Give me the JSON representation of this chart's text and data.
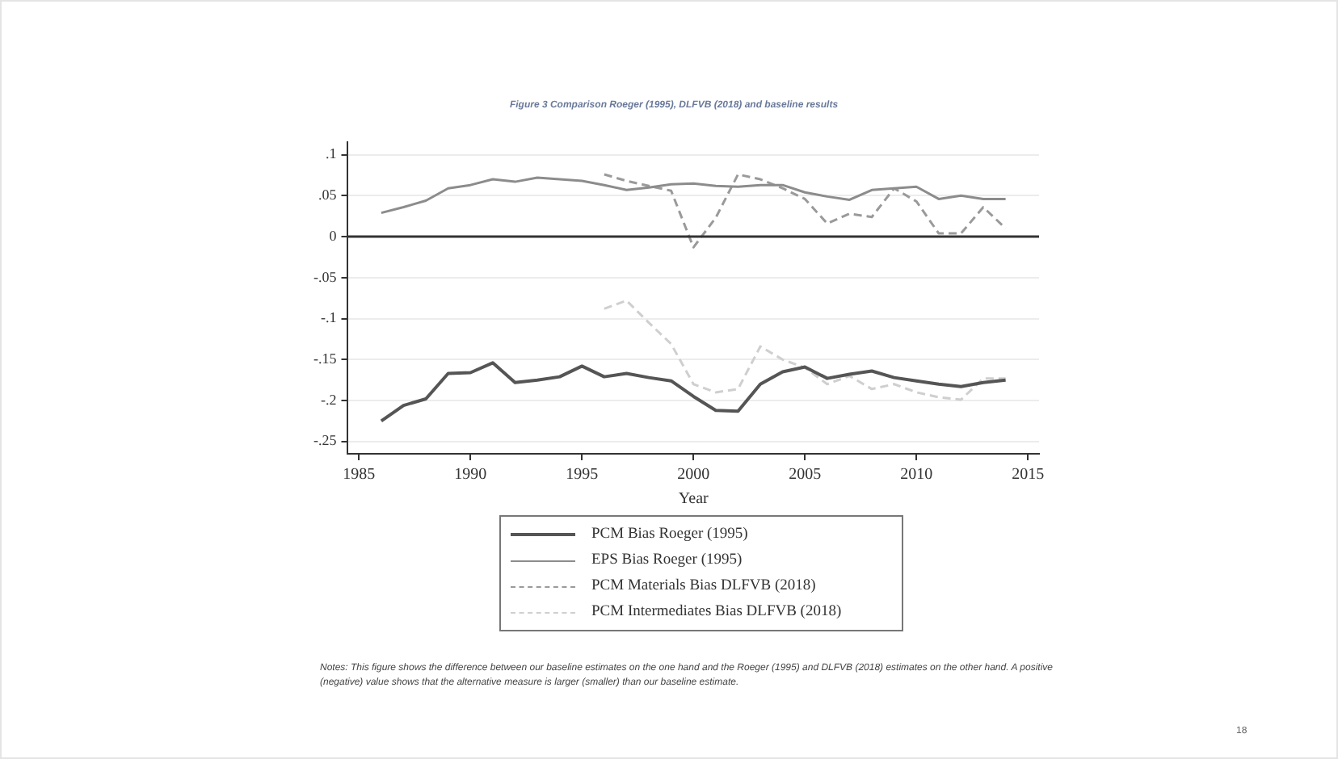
{
  "chart_data": {
    "type": "line",
    "title": "Figure 3 Comparison Roeger (1995), DLFVB (2018) and baseline results",
    "xlabel": "Year",
    "x": [
      1986,
      1987,
      1988,
      1989,
      1990,
      1991,
      1992,
      1993,
      1994,
      1995,
      1996,
      1997,
      1998,
      1999,
      2000,
      2001,
      2002,
      2003,
      2004,
      2005,
      2006,
      2007,
      2008,
      2009,
      2010,
      2011,
      2012,
      2013,
      2014
    ],
    "series": [
      {
        "name": "PCM Bias Roeger (1995)",
        "color": "#555555",
        "line_style": "solid",
        "values": [
          -0.225,
          -0.206,
          -0.198,
          -0.167,
          -0.166,
          -0.154,
          -0.178,
          -0.175,
          -0.171,
          -0.158,
          -0.171,
          -0.167,
          -0.172,
          -0.176,
          -0.195,
          -0.212,
          -0.213,
          -0.18,
          -0.165,
          -0.159,
          -0.173,
          -0.168,
          -0.164,
          -0.172,
          -0.176,
          -0.18,
          -0.183,
          -0.178,
          -0.175
        ]
      },
      {
        "name": "EPS Bias Roeger (1995)",
        "color": "#8c8c8c",
        "line_style": "solid",
        "values": [
          0.029,
          0.036,
          0.044,
          0.059,
          0.063,
          0.07,
          0.067,
          0.072,
          0.07,
          0.068,
          0.063,
          0.057,
          0.06,
          0.064,
          0.065,
          0.062,
          0.061,
          0.063,
          0.063,
          0.054,
          0.049,
          0.045,
          0.057,
          0.059,
          0.061,
          0.046,
          0.05,
          0.046,
          0.046
        ]
      },
      {
        "name": "PCM Materials Bias DLFVB (2018)",
        "color": "#9a9a9a",
        "line_style": "dashed",
        "values": [
          null,
          null,
          null,
          null,
          null,
          null,
          null,
          null,
          null,
          null,
          0.076,
          0.068,
          0.062,
          0.056,
          -0.013,
          0.023,
          0.076,
          0.07,
          0.059,
          0.046,
          0.016,
          0.028,
          0.024,
          0.059,
          0.043,
          0.004,
          0.004,
          0.036,
          0.01
        ]
      },
      {
        "name": "PCM Intermediates Bias DLFVB (2018)",
        "color": "#cfcfcf",
        "line_style": "dashed",
        "values": [
          null,
          null,
          null,
          null,
          null,
          null,
          null,
          null,
          null,
          null,
          -0.088,
          -0.078,
          -0.105,
          -0.131,
          -0.18,
          -0.19,
          -0.186,
          -0.134,
          -0.15,
          -0.16,
          -0.18,
          -0.17,
          -0.186,
          -0.18,
          -0.19,
          -0.196,
          -0.199,
          -0.173,
          -0.173
        ]
      }
    ],
    "xlim": [
      1984.5,
      2015.5
    ],
    "xticks": [
      1985,
      1990,
      1995,
      2000,
      2005,
      2010,
      2015
    ],
    "ylim": [
      -0.265,
      0.115
    ],
    "yticks": [
      {
        "value": 0.1,
        "label": ".1"
      },
      {
        "value": 0.05,
        "label": ".05"
      },
      0,
      {
        "value": -0.05,
        "label": "-.05"
      },
      {
        "value": -0.1,
        "label": "-.1"
      },
      {
        "value": -0.15,
        "label": "-.15"
      },
      {
        "value": -0.2,
        "label": "-.2"
      },
      {
        "value": -0.25,
        "label": "-.25"
      }
    ],
    "grid": "y",
    "legend": "bottom",
    "marker": "none",
    "ref_lines": [
      {
        "axis": "y",
        "value": 0,
        "color": "#333333"
      }
    ],
    "annotations": [
      "Notes: This figure shows the difference between our baseline estimates on the one hand and the Roeger (1995) and DLFVB (2018) estimates on the other hand. A positive (negative) value shows that the alternative measure is larger (smaller) than our baseline estimate.",
      "18"
    ]
  }
}
